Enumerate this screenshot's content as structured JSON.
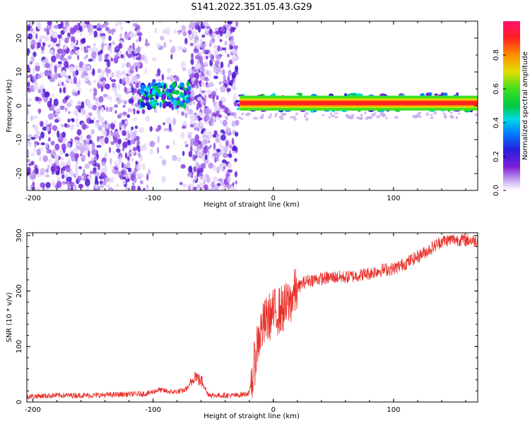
{
  "title": "S141.2022.351.05.43.G29",
  "chart_data": [
    {
      "type": "heatmap",
      "xlabel": "Height of straight line (km)",
      "ylabel": "Frequency (Hz)",
      "xlim": [
        -205,
        170
      ],
      "ylim": [
        -25,
        25
      ],
      "x_ticks": [
        "-200",
        "-100",
        "0",
        "100"
      ],
      "y_ticks": [
        "20",
        "10",
        "0",
        "-10",
        "-20"
      ],
      "colorbar": {
        "label": "Normalized spectral amplitude",
        "ticks": [
          "0.0",
          "0.2",
          "0.4",
          "0.6",
          "0.8"
        ],
        "range": [
          0,
          1
        ]
      },
      "regions": [
        {
          "x": [
            -205,
            -110
          ],
          "content": "scattered noise",
          "amplitude": 0.1
        },
        {
          "x": [
            -110,
            -70
          ],
          "content": "band near 3 Hz",
          "amplitude": 0.3
        },
        {
          "x": [
            -70,
            -30
          ],
          "content": "scattered noise",
          "amplitude": 0.1
        },
        {
          "x": [
            -30,
            170
          ],
          "content": "band near 0-1 Hz",
          "amplitude": 0.85
        }
      ]
    },
    {
      "type": "line",
      "xlabel": "Height of straight line (km)",
      "ylabel": "SNR (10 * v/v)",
      "xlim": [
        -205,
        170
      ],
      "ylim": [
        0,
        305
      ],
      "x_ticks": [
        "-200",
        "-100",
        "0",
        "100"
      ],
      "y_ticks": [
        "0",
        "100",
        "200",
        "300"
      ],
      "color": "#e8302a",
      "series": [
        {
          "x": [
            -205,
            -180,
            -150,
            -120,
            -105,
            -95,
            -85,
            -75,
            -70,
            -65,
            -62,
            -58,
            -55,
            -50,
            -40,
            -30,
            -25,
            -20,
            -16,
            -14,
            -10,
            -5,
            0,
            5,
            10,
            15,
            20,
            25,
            30,
            40,
            50,
            60,
            70,
            80,
            90,
            100,
            110,
            120,
            130,
            140,
            150,
            160,
            170
          ],
          "y": [
            10,
            12,
            12,
            14,
            15,
            22,
            18,
            20,
            28,
            50,
            40,
            35,
            15,
            12,
            12,
            12,
            14,
            16,
            60,
            100,
            130,
            150,
            160,
            165,
            170,
            185,
            205,
            215,
            220,
            222,
            225,
            225,
            228,
            232,
            238,
            240,
            250,
            262,
            275,
            290,
            293,
            292,
            290
          ]
        }
      ]
    }
  ]
}
